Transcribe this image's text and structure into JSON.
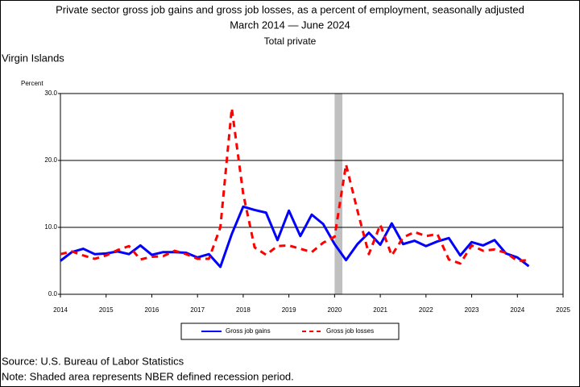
{
  "chart_data": {
    "type": "line",
    "title": "Private sector gross job gains and gross job losses, as a percent of employment, seasonally adjusted",
    "subtitle": "March 2014 — June 2024",
    "subtitle2": "Total private",
    "region": "Virgin Islands",
    "ylabel": "Percent",
    "x": [
      2014,
      2014.25,
      2014.5,
      2014.75,
      2015,
      2015.25,
      2015.5,
      2015.75,
      2016,
      2016.25,
      2016.5,
      2016.75,
      2017,
      2017.25,
      2017.5,
      2017.75,
      2018,
      2018.25,
      2018.5,
      2018.75,
      2019,
      2019.25,
      2019.5,
      2019.75,
      2020,
      2020.25,
      2020.5,
      2020.75,
      2021,
      2021.25,
      2021.5,
      2021.75,
      2022,
      2022.25,
      2022.5,
      2022.75,
      2023,
      2023.25,
      2023.5,
      2023.75,
      2024,
      2024.25
    ],
    "series": [
      {
        "name": "Gross job gains",
        "color": "#0000ff",
        "dash": "solid",
        "values": [
          5.0,
          6.3,
          6.8,
          6.0,
          6.1,
          6.4,
          6.0,
          7.3,
          5.9,
          6.3,
          6.3,
          6.2,
          5.5,
          6.0,
          4.1,
          9.0,
          13.1,
          12.6,
          12.2,
          8.1,
          12.5,
          8.7,
          11.9,
          10.5,
          7.5,
          5.1,
          7.5,
          9.2,
          7.4,
          10.6,
          7.5,
          8.0,
          7.2,
          7.9,
          8.4,
          5.8,
          7.8,
          7.3,
          8.1,
          6.1,
          5.5,
          4.2
        ]
      },
      {
        "name": "Gross job losses",
        "color": "#ff0000",
        "dash": "dashed",
        "values": [
          6.0,
          6.4,
          5.8,
          5.3,
          5.8,
          6.6,
          7.2,
          5.2,
          5.6,
          5.7,
          6.5,
          6.0,
          5.3,
          5.3,
          10.0,
          27.8,
          15.0,
          7.0,
          5.9,
          7.2,
          7.3,
          6.8,
          6.3,
          7.7,
          8.6,
          19.4,
          12.5,
          6.0,
          10.4,
          5.8,
          8.5,
          9.3,
          8.7,
          9.0,
          5.2,
          4.6,
          7.3,
          6.5,
          6.7,
          6.2,
          5.0,
          5.1
        ]
      }
    ],
    "recession": [
      2020,
      2020.17
    ],
    "xlim": [
      2014,
      2025
    ],
    "xticks": [
      2014,
      2015,
      2016,
      2017,
      2018,
      2019,
      2020,
      2021,
      2022,
      2023,
      2024,
      2025
    ],
    "ylim": [
      0,
      30
    ],
    "yticks": [
      {
        "value": 0,
        "label": "0.0"
      },
      {
        "value": 10,
        "label": "10.0"
      },
      {
        "value": 20,
        "label": "20.0"
      },
      {
        "value": 30,
        "label": "30.0"
      }
    ],
    "grid": true,
    "legend": "bottom",
    "source": "Source: U.S. Bureau of Labor Statistics",
    "note": "Note: Shaded area represents NBER defined recession period."
  }
}
